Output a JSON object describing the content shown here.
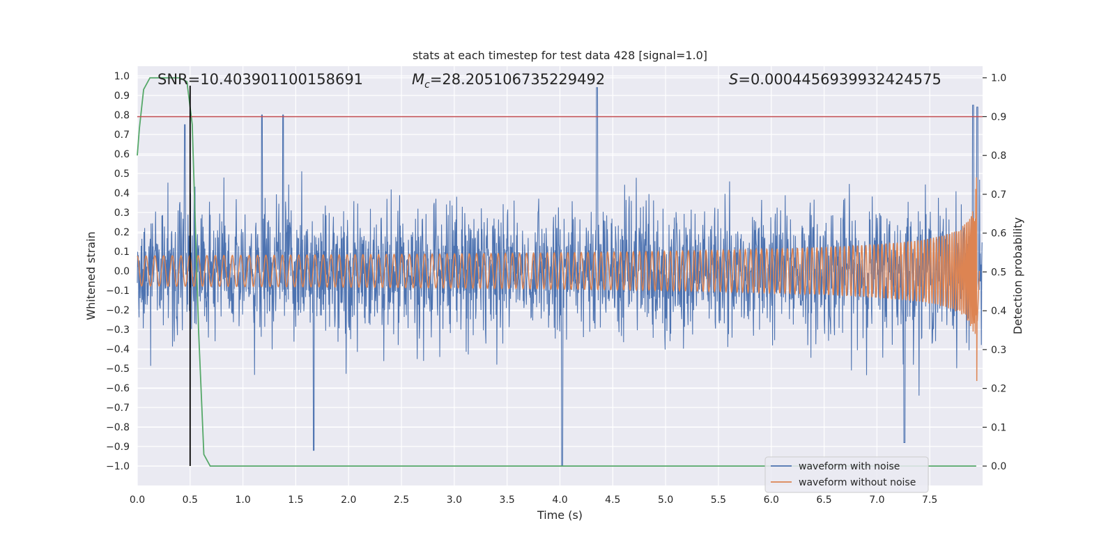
{
  "chart_data": {
    "type": "line",
    "title": "stats at each timestep for test data 428 [signal=1.0]",
    "xlabel": "Time (s)",
    "ylabel": "Whitened strain",
    "y2label": "Detection probability",
    "xlim": [
      0.0,
      8.0
    ],
    "ylim": [
      -1.1,
      1.05
    ],
    "y2lim": [
      -0.05,
      1.03
    ],
    "grid": true,
    "x_ticks": [
      0.0,
      0.5,
      1.0,
      1.5,
      2.0,
      2.5,
      3.0,
      3.5,
      4.0,
      4.5,
      5.0,
      5.5,
      6.0,
      6.5,
      7.0,
      7.5
    ],
    "x_tick_labels": [
      "0.0",
      "0.5",
      "1.0",
      "1.5",
      "2.0",
      "2.5",
      "3.0",
      "3.5",
      "4.0",
      "4.5",
      "5.0",
      "5.5",
      "6.0",
      "6.5",
      "7.0",
      "7.5"
    ],
    "y_ticks": [
      -1.0,
      -0.9,
      -0.8,
      -0.7,
      -0.6,
      -0.5,
      -0.4,
      -0.3,
      -0.2,
      -0.1,
      0.0,
      0.1,
      0.2,
      0.3,
      0.4,
      0.5,
      0.6,
      0.7,
      0.8,
      0.9,
      1.0
    ],
    "y_tick_labels": [
      "−1.0",
      "−0.9",
      "−0.8",
      "−0.7",
      "−0.6",
      "−0.5",
      "−0.4",
      "−0.3",
      "−0.2",
      "−0.1",
      "0.0",
      "0.1",
      "0.2",
      "0.3",
      "0.4",
      "0.5",
      "0.6",
      "0.7",
      "0.8",
      "0.9",
      "1.0"
    ],
    "y2_ticks": [
      0.0,
      0.1,
      0.2,
      0.3,
      0.4,
      0.5,
      0.6,
      0.7,
      0.8,
      0.9,
      1.0
    ],
    "y2_tick_labels": [
      "0.0",
      "0.1",
      "0.2",
      "0.3",
      "0.4",
      "0.5",
      "0.6",
      "0.7",
      "0.8",
      "0.9",
      "1.0"
    ],
    "annotations": {
      "snr": "SNR=10.403901100158691",
      "mc_symbol": "M",
      "mc_sub": "c",
      "mc_value": "=28.205106735229492",
      "s_symbol": "S",
      "s_value": "=0.0004456939932424575"
    },
    "threshold": {
      "axis": "right",
      "value": 0.9
    },
    "marker_line": {
      "x": 0.5,
      "y_range": [
        -1.0,
        0.95
      ]
    },
    "series": [
      {
        "name": "waveform with noise",
        "axis": "left",
        "color": "#4c72b0",
        "kind": "noise",
        "noise_std": 0.17,
        "typical_extent": [
          -0.5,
          0.6
        ],
        "peaks": [
          {
            "x": 0.45,
            "y": 0.75
          },
          {
            "x": 1.18,
            "y": 0.8
          },
          {
            "x": 1.38,
            "y": 0.8
          },
          {
            "x": 4.35,
            "y": 0.94
          },
          {
            "x": 4.02,
            "y": -1.0
          },
          {
            "x": 1.67,
            "y": -0.92
          },
          {
            "x": 7.26,
            "y": -0.88
          },
          {
            "x": 7.91,
            "y": 0.85
          },
          {
            "x": 7.95,
            "y": 0.84
          }
        ]
      },
      {
        "name": "waveform without noise",
        "axis": "left",
        "color": "#dd8452",
        "kind": "chirp",
        "merger_time": 7.95,
        "peak_amplitude": 0.6
      },
      {
        "name": "Detection probability",
        "axis": "right",
        "color": "#55a868",
        "x": [
          0.0,
          0.02,
          0.06,
          0.12,
          0.2,
          0.3,
          0.4,
          0.47,
          0.52,
          0.58,
          0.63,
          0.69,
          0.75,
          1.0,
          2.0,
          3.0,
          4.0,
          5.0,
          6.0,
          7.0,
          7.94
        ],
        "values": [
          0.8,
          0.87,
          0.97,
          1.0,
          1.0,
          1.0,
          1.0,
          0.99,
          0.88,
          0.35,
          0.03,
          0.0,
          0.0,
          0.0,
          0.0,
          0.0,
          0.0,
          0.0,
          0.0,
          0.0,
          0.0
        ]
      }
    ],
    "legend": {
      "position": "lower-right",
      "entries": [
        {
          "label": "waveform with noise",
          "color": "#4c72b0"
        },
        {
          "label": "waveform without noise",
          "color": "#dd8452"
        }
      ]
    },
    "colors": {
      "background": "#eaeaf2",
      "grid": "#ffffff",
      "threshold": "#c44e52",
      "marker": "#000000"
    }
  }
}
